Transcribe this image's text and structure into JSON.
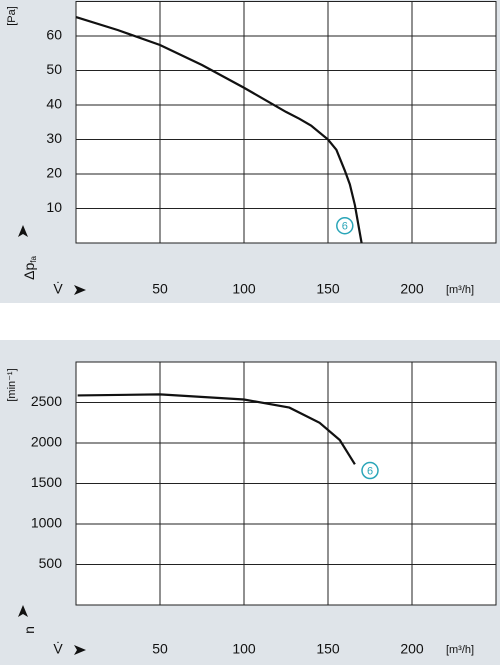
{
  "chart_data": [
    {
      "type": "line",
      "x_label": "V̇",
      "x_unit": "[m³/h]",
      "y_label": "Δp",
      "y_label_sub": "fa",
      "y_unit": "[Pa]",
      "x": [
        0,
        25,
        50,
        75,
        100,
        125,
        133,
        140,
        150,
        155,
        160,
        163,
        166,
        170
      ],
      "series": [
        {
          "color": "#111111",
          "values": [
            65.5,
            61.7,
            57.4,
            51.6,
            45,
            38,
            36,
            34,
            30,
            27,
            21,
            17,
            11,
            0
          ]
        }
      ],
      "xlim": [
        0,
        250
      ],
      "ylim": [
        0,
        70
      ],
      "xticks": [
        50,
        100,
        150,
        200
      ],
      "yticks": [
        10,
        20,
        30,
        40,
        50,
        60
      ],
      "annotation": {
        "text": "6",
        "x": 160,
        "y": 5,
        "color": "#2aa5b8"
      }
    },
    {
      "type": "line",
      "x_label": "V̇",
      "x_unit": "[m³/h]",
      "y_label": "n",
      "y_unit": "[min⁻¹]",
      "x": [
        1,
        50,
        100,
        127,
        145,
        157,
        166
      ],
      "series": [
        {
          "color": "#111111",
          "values": [
            2587,
            2600,
            2537,
            2437,
            2250,
            2037,
            1737
          ]
        }
      ],
      "xlim": [
        0,
        250
      ],
      "ylim": [
        0,
        3000
      ],
      "xticks": [
        50,
        100,
        150,
        200
      ],
      "yticks": [
        500,
        1000,
        1500,
        2000,
        2500
      ],
      "annotation": {
        "text": "6",
        "x": 175,
        "y": 1660,
        "color": "#2aa5b8"
      }
    }
  ]
}
